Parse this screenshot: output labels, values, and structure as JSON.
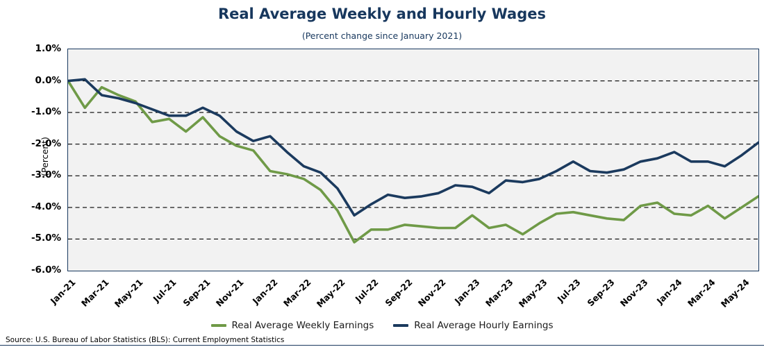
{
  "title": "Real Average Weekly and Hourly Wages",
  "subtitle": "(Percent change since January 2021)",
  "y_axis_title": "(Percent)",
  "source": "Source: U.S. Bureau of Labor Statistics (BLS): Current Employment Statistics",
  "colors": {
    "title": "#17375d",
    "weekly_line": "#6f9a47",
    "hourly_line": "#1b3a5e",
    "plot_background": "#f2f2f2",
    "plot_border": "#17375d",
    "gridline": "#000000"
  },
  "legend": [
    {
      "label": "Real Average Weekly Earnings",
      "color": "#6f9a47"
    },
    {
      "label": "Real Average Hourly Earnings",
      "color": "#1b3a5e"
    }
  ],
  "chart_data": {
    "type": "line",
    "title": "Real Average Weekly and Hourly Wages",
    "subtitle": "(Percent change since January 2021)",
    "ylabel": "(Percent)",
    "ylim": [
      -6.0,
      1.0
    ],
    "y_ticks": [
      1.0,
      0.0,
      -1.0,
      -2.0,
      -3.0,
      -4.0,
      -5.0,
      -6.0
    ],
    "y_tick_labels": [
      "1.0%",
      "0.0%",
      "-1.0%",
      "-2.0%",
      "-3.0%",
      "-4.0%",
      "-5.0%",
      "-6.0%"
    ],
    "gridlines_at": [
      0,
      -1,
      -2,
      -3,
      -4,
      -5
    ],
    "grid": "dashed horizontal",
    "legend_position": "bottom",
    "x": [
      "Jan-21",
      "Feb-21",
      "Mar-21",
      "Apr-21",
      "May-21",
      "Jun-21",
      "Jul-21",
      "Aug-21",
      "Sep-21",
      "Oct-21",
      "Nov-21",
      "Dec-21",
      "Jan-22",
      "Feb-22",
      "Mar-22",
      "Apr-22",
      "May-22",
      "Jun-22",
      "Jul-22",
      "Aug-22",
      "Sep-22",
      "Oct-22",
      "Nov-22",
      "Dec-22",
      "Jan-23",
      "Feb-23",
      "Mar-23",
      "Apr-23",
      "May-23",
      "Jun-23",
      "Jul-23",
      "Aug-23",
      "Sep-23",
      "Oct-23",
      "Nov-23",
      "Dec-23",
      "Jan-24",
      "Feb-24",
      "Mar-24",
      "Apr-24",
      "May-24",
      "Jun-24"
    ],
    "x_tick_every": 2,
    "x_tick_labels": [
      "Jan-21",
      "Mar-21",
      "May-21",
      "Jul-21",
      "Sep-21",
      "Nov-21",
      "Jan-22",
      "Mar-22",
      "May-22",
      "Jul-22",
      "Sep-22",
      "Nov-22",
      "Jan-23",
      "Mar-23",
      "May-23",
      "Jul-23",
      "Sep-23",
      "Nov-23",
      "Jan-24",
      "Mar-24",
      "May-24"
    ],
    "series": [
      {
        "name": "Real Average Weekly Earnings",
        "color": "#6f9a47",
        "values": [
          0.0,
          -0.85,
          -0.2,
          -0.45,
          -0.65,
          -1.3,
          -1.2,
          -1.6,
          -1.15,
          -1.75,
          -2.05,
          -2.2,
          -2.85,
          -2.95,
          -3.1,
          -3.45,
          -4.1,
          -5.1,
          -4.7,
          -4.7,
          -4.55,
          -4.6,
          -4.65,
          -4.65,
          -4.25,
          -4.65,
          -4.55,
          -4.85,
          -4.5,
          -4.2,
          -4.15,
          -4.25,
          -4.35,
          -4.4,
          -3.95,
          -3.85,
          -4.2,
          -4.25,
          -3.95,
          -4.35,
          -4.0,
          -3.65
        ]
      },
      {
        "name": "Real Average Hourly Earnings",
        "color": "#1b3a5e",
        "values": [
          0.0,
          0.05,
          -0.45,
          -0.55,
          -0.7,
          -0.9,
          -1.1,
          -1.1,
          -0.85,
          -1.1,
          -1.6,
          -1.9,
          -1.75,
          -2.25,
          -2.7,
          -2.9,
          -3.4,
          -4.25,
          -3.9,
          -3.6,
          -3.7,
          -3.65,
          -3.55,
          -3.3,
          -3.35,
          -3.55,
          -3.15,
          -3.2,
          -3.1,
          -2.85,
          -2.55,
          -2.85,
          -2.9,
          -2.8,
          -2.55,
          -2.45,
          -2.25,
          -2.55,
          -2.55,
          -2.7,
          -2.35,
          -1.95
        ]
      }
    ]
  }
}
